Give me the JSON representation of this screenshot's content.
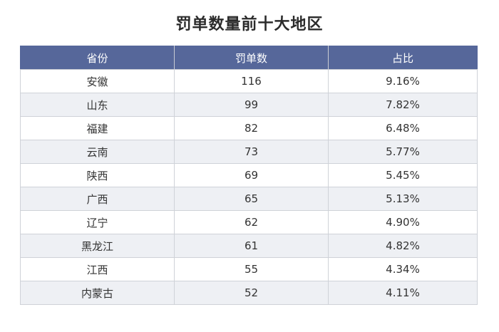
{
  "chart_data": {
    "type": "table",
    "title": "罚单数量前十大地区",
    "columns": [
      "省份",
      "罚单数",
      "占比"
    ],
    "rows": [
      [
        "安徽",
        "116",
        "9.16%"
      ],
      [
        "山东",
        "99",
        "7.82%"
      ],
      [
        "福建",
        "82",
        "6.48%"
      ],
      [
        "云南",
        "73",
        "5.77%"
      ],
      [
        "陕西",
        "69",
        "5.45%"
      ],
      [
        "广西",
        "65",
        "5.13%"
      ],
      [
        "辽宁",
        "62",
        "4.90%"
      ],
      [
        "黑龙江",
        "61",
        "4.82%"
      ],
      [
        "江西",
        "55",
        "4.34%"
      ],
      [
        "内蒙古",
        "52",
        "4.11%"
      ]
    ]
  },
  "colors": {
    "header_bg": "#56679a",
    "header_text": "#ffffff",
    "row_alt_bg": "#eef0f4",
    "border": "#cfd2d8"
  }
}
